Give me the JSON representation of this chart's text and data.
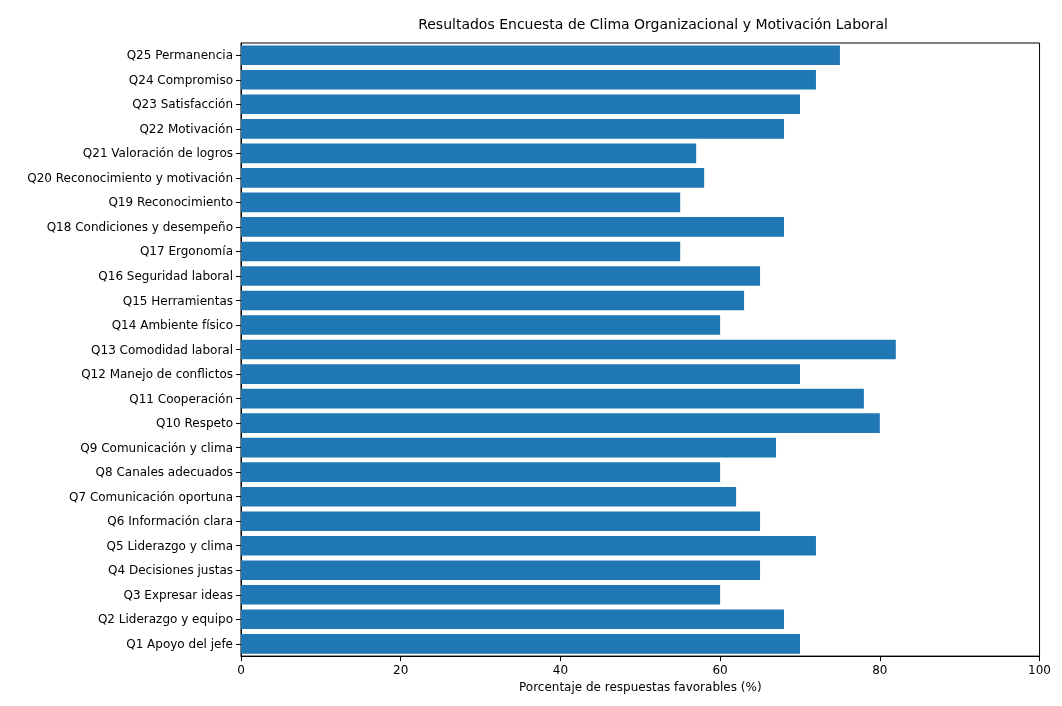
{
  "chart_data": {
    "type": "bar",
    "orientation": "horizontal",
    "title": "Resultados Encuesta de Clima Organizacional y Motivación Laboral",
    "xlabel": "Porcentaje de respuestas favorables (%)",
    "categories": [
      "Q25 Permanencia",
      "Q24 Compromiso",
      "Q23 Satisfacción",
      "Q22 Motivación",
      "Q21 Valoración de logros",
      "Q20 Reconocimiento y motivación",
      "Q19 Reconocimiento",
      "Q18 Condiciones y desempeño",
      "Q17 Ergonomía",
      "Q16 Seguridad laboral",
      "Q15 Herramientas",
      "Q14 Ambiente físico",
      "Q13 Comodidad laboral",
      "Q12 Manejo de conflictos",
      "Q11 Cooperación",
      "Q10 Respeto",
      "Q9 Comunicación y clima",
      "Q8 Canales adecuados",
      "Q7 Comunicación oportuna",
      "Q6 Información clara",
      "Q5 Liderazgo y clima",
      "Q4 Decisiones justas",
      "Q3 Expresar ideas",
      "Q2 Liderazgo y equipo",
      "Q1 Apoyo del jefe"
    ],
    "values": [
      75,
      72,
      70,
      68,
      57,
      58,
      55,
      68,
      55,
      65,
      63,
      60,
      82,
      70,
      78,
      80,
      67,
      60,
      62,
      65,
      72,
      65,
      60,
      68,
      70
    ],
    "color": "#1f77b4",
    "xlim": [
      0,
      100
    ],
    "xticks": [
      0,
      20,
      40,
      60,
      80,
      100
    ],
    "grid": false
  }
}
